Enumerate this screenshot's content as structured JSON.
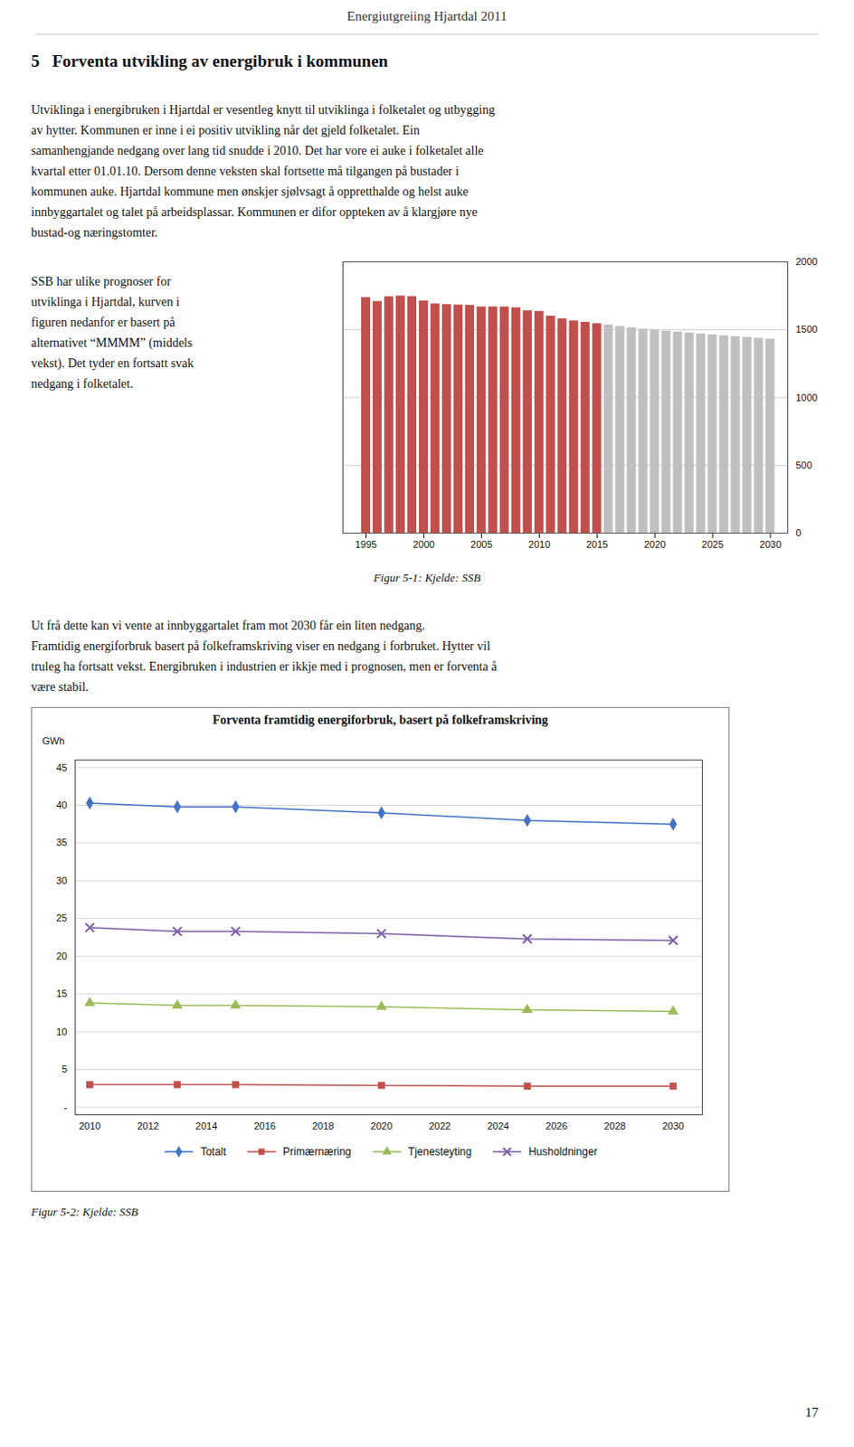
{
  "page_header": "Energiutgreiing Hjartdal 2011",
  "section_title": "5   Forventa utvikling av energibruk i kommunen",
  "body_text_1": [
    "Utviklinga i energibruken i Hjartdal er vesentleg knytt til utviklinga i folketalet og utbygging",
    "av hytter. Kommunen er inne i ei positiv utvikling når det gjeld folketalet. Ein",
    "samanhengjande nedgang over lang tid snudde i 2010. Det har vore ei auke i folketalet alle",
    "kvartal etter 01.01.10. Dersom denne veksten skal fortsette må tilgangen på bustader i",
    "kommunen auke. Hjartdal kommune men ønskjer sjølvsagt å oppretthalde og helst auke",
    "innbyggartalet og talet på arbeidsplassar. Kommunen er difor oppteken av å klargjøre nye",
    "bustad-og næringstomter."
  ],
  "side_text": [
    "SSB har ulike prognoser for",
    "utviklinga i Hjartdal, kurven i",
    "figuren nedanfor er basert på",
    "alternativet “MMMM” (middels",
    "vekst). Det tyder en fortsatt svak",
    "nedgang i folketalet."
  ],
  "body_text_2": [
    "Ut frå dette kan vi vente at innbyggartalet fram mot 2030 får ein liten nedgang.",
    "Framtidig energiforbruk basert på folkeframskriving viser en nedgang i forbruket. Hytter vil",
    "truleg ha fortsatt vekst.  Energibruken i industrien er ikkje med i prognosen, men er forventa å",
    "være stabil."
  ],
  "page_number": "17",
  "chart_data": [
    {
      "type": "bar",
      "caption": "Figur 5-1: Kjelde: SSB",
      "x": [
        1995,
        1996,
        1997,
        1998,
        1999,
        2000,
        2001,
        2002,
        2003,
        2004,
        2005,
        2006,
        2007,
        2008,
        2009,
        2010,
        2011,
        2012,
        2013,
        2014,
        2015,
        2016,
        2017,
        2018,
        2019,
        2020,
        2021,
        2022,
        2023,
        2024,
        2025,
        2026,
        2027,
        2028,
        2029,
        2030
      ],
      "values": [
        1737,
        1708,
        1743,
        1748,
        1744,
        1712,
        1690,
        1685,
        1682,
        1680,
        1668,
        1668,
        1668,
        1662,
        1640,
        1635,
        1600,
        1580,
        1565,
        1555,
        1545,
        1535,
        1525,
        1515,
        1505,
        1498,
        1490,
        1483,
        1476,
        1469,
        1462,
        1455,
        1449,
        1443,
        1437,
        1432
      ],
      "colors": [
        "#c0504d",
        "#c0504d",
        "#c0504d",
        "#c0504d",
        "#c0504d",
        "#c0504d",
        "#c0504d",
        "#c0504d",
        "#c0504d",
        "#c0504d",
        "#c0504d",
        "#c0504d",
        "#c0504d",
        "#c0504d",
        "#c0504d",
        "#c0504d",
        "#c0504d",
        "#c0504d",
        "#c0504d",
        "#c0504d",
        "#c0504d",
        "#bfbfbf",
        "#bfbfbf",
        "#bfbfbf",
        "#bfbfbf",
        "#bfbfbf",
        "#bfbfbf",
        "#bfbfbf",
        "#bfbfbf",
        "#bfbfbf",
        "#bfbfbf",
        "#bfbfbf",
        "#bfbfbf",
        "#bfbfbf",
        "#bfbfbf",
        "#bfbfbf"
      ],
      "xlim": [
        1993,
        2031.5
      ],
      "xticks": [
        1995,
        2000,
        2005,
        2010,
        2015,
        2020,
        2025,
        2030
      ],
      "ylim": [
        0,
        2000
      ],
      "yticks": [
        0,
        500,
        1000,
        1500,
        2000
      ],
      "grid": true
    },
    {
      "type": "line",
      "title": "Forventa framtidig energiforbruk, basert på folkeframskriving",
      "ylabel": "GWh",
      "caption": "Figur 5-2: Kjelde: SSB",
      "x": [
        2010,
        2013,
        2015,
        2020,
        2025,
        2030
      ],
      "series": [
        {
          "name": "Totalt",
          "color": "#4472c4",
          "marker": "diamond",
          "values": [
            40.3,
            39.8,
            39.8,
            39.0,
            38.0,
            37.5
          ]
        },
        {
          "name": "Primærnæring",
          "color": "#c0504d",
          "marker": "square",
          "values": [
            3.0,
            3.0,
            3.0,
            2.9,
            2.8,
            2.8
          ]
        },
        {
          "name": "Tjenesteyting",
          "color": "#9bbb59",
          "marker": "triangle",
          "values": [
            13.8,
            13.5,
            13.5,
            13.3,
            12.9,
            12.7
          ]
        },
        {
          "name": "Husholdninger",
          "color": "#7b5ea7",
          "marker": "x",
          "values": [
            23.8,
            23.3,
            23.3,
            23.0,
            22.3,
            22.1
          ]
        }
      ],
      "xlim": [
        2009.5,
        2031
      ],
      "xticks": [
        2010,
        2012,
        2014,
        2016,
        2018,
        2020,
        2022,
        2024,
        2026,
        2028,
        2030
      ],
      "ylim": [
        -1,
        46
      ],
      "yticks": [
        {
          "value": 0,
          "label": "-"
        },
        5,
        10,
        15,
        20,
        25,
        30,
        35,
        40,
        45
      ],
      "grid": true,
      "legend": "bottom"
    }
  ]
}
